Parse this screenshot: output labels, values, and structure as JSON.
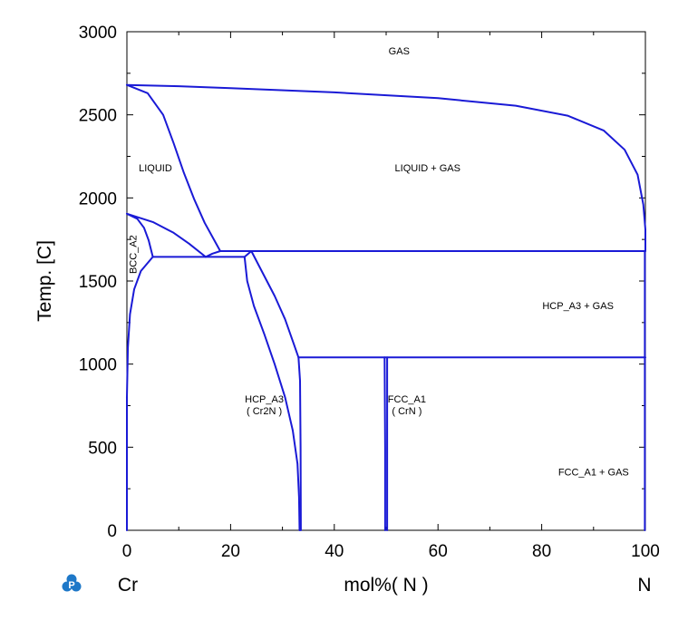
{
  "chart_data": {
    "type": "line",
    "xlabel": "mol%( N )",
    "ylabel": "Temp. [C]",
    "xlim": [
      0,
      100
    ],
    "ylim": [
      0,
      3000
    ],
    "x_ticks": [
      "0",
      "20",
      "40",
      "60",
      "80",
      "100"
    ],
    "y_ticks": [
      "0",
      "500",
      "1000",
      "1500",
      "2000",
      "2500",
      "3000"
    ],
    "left_element": "Cr",
    "right_element": "N",
    "grid": false,
    "line_color": "#1a1ad6",
    "regions": [
      {
        "lines": [
          "GAS"
        ],
        "x": 52.5,
        "y": 2865
      },
      {
        "lines": [
          "LIQUID"
        ],
        "x": 5.5,
        "y": 2160
      },
      {
        "lines": [
          "LIQUID + GAS"
        ],
        "x": 58,
        "y": 2160
      },
      {
        "lines": [
          "BCC_A2"
        ],
        "x": 1.8,
        "y": 1660,
        "rotate": true
      },
      {
        "lines": [
          "HCP_A3 + GAS"
        ],
        "x": 87,
        "y": 1330
      },
      {
        "lines": [
          "HCP_A3",
          "( Cr2N )"
        ],
        "x": 26.5,
        "y": 770
      },
      {
        "lines": [
          "FCC_A1",
          "( CrN )"
        ],
        "x": 54,
        "y": 770
      },
      {
        "lines": [
          "FCC_A1 + GAS"
        ],
        "x": 90,
        "y": 330
      }
    ],
    "series": [
      {
        "points": [
          [
            0,
            2680
          ],
          [
            10,
            2672
          ],
          [
            20,
            2660
          ],
          [
            40,
            2635
          ],
          [
            60,
            2600
          ],
          [
            75,
            2555
          ],
          [
            85,
            2495
          ],
          [
            92,
            2405
          ],
          [
            96,
            2290
          ],
          [
            98.5,
            2140
          ],
          [
            99.6,
            1960
          ],
          [
            100,
            1810
          ],
          [
            100,
            1680
          ]
        ]
      },
      {
        "points": [
          [
            0,
            2680
          ],
          [
            4,
            2630
          ],
          [
            7,
            2500
          ],
          [
            9,
            2330
          ],
          [
            11,
            2150
          ],
          [
            13,
            1990
          ],
          [
            15,
            1850
          ],
          [
            18,
            1680
          ]
        ]
      },
      {
        "points": [
          [
            0,
            1905
          ],
          [
            5,
            1855
          ],
          [
            9,
            1790
          ],
          [
            12,
            1725
          ],
          [
            15.2,
            1645
          ]
        ]
      },
      {
        "points": [
          [
            15.2,
            1645
          ],
          [
            16.5,
            1665
          ],
          [
            18,
            1680
          ],
          [
            100,
            1680
          ]
        ]
      },
      {
        "points": [
          [
            0,
            1905
          ],
          [
            2,
            1875
          ],
          [
            3.3,
            1820
          ],
          [
            4.2,
            1745
          ],
          [
            5,
            1645
          ]
        ]
      },
      {
        "points": [
          [
            5,
            1645
          ],
          [
            22.7,
            1645
          ],
          [
            24,
            1680
          ]
        ]
      },
      {
        "points": [
          [
            0,
            800
          ],
          [
            0.2,
            1100
          ],
          [
            0.6,
            1300
          ],
          [
            1.4,
            1450
          ],
          [
            2.7,
            1560
          ],
          [
            5,
            1645
          ]
        ]
      },
      {
        "points": [
          [
            22.7,
            1645
          ],
          [
            23.2,
            1500
          ],
          [
            24.5,
            1350
          ],
          [
            26.5,
            1180
          ],
          [
            28.5,
            1000
          ],
          [
            30.5,
            800
          ],
          [
            32,
            600
          ],
          [
            32.9,
            400
          ],
          [
            33.2,
            200
          ],
          [
            33.3,
            0
          ]
        ]
      },
      {
        "points": [
          [
            24,
            1680
          ],
          [
            26,
            1560
          ],
          [
            28.5,
            1410
          ],
          [
            30.5,
            1270
          ],
          [
            32.2,
            1120
          ],
          [
            33.1,
            1040
          ],
          [
            33.4,
            900
          ],
          [
            33.5,
            500
          ],
          [
            33.55,
            0
          ]
        ]
      },
      {
        "points": [
          [
            33.1,
            1040
          ],
          [
            100,
            1040
          ]
        ]
      },
      {
        "points": [
          [
            49.7,
            1040
          ],
          [
            49.8,
            500
          ],
          [
            49.8,
            0
          ]
        ]
      },
      {
        "points": [
          [
            50.2,
            1040
          ],
          [
            50.2,
            500
          ],
          [
            50.2,
            0
          ]
        ]
      },
      {
        "points": [
          [
            0,
            0
          ],
          [
            0,
            800
          ]
        ]
      },
      {
        "points": [
          [
            99.9,
            0
          ],
          [
            99.9,
            1680
          ]
        ]
      }
    ]
  }
}
